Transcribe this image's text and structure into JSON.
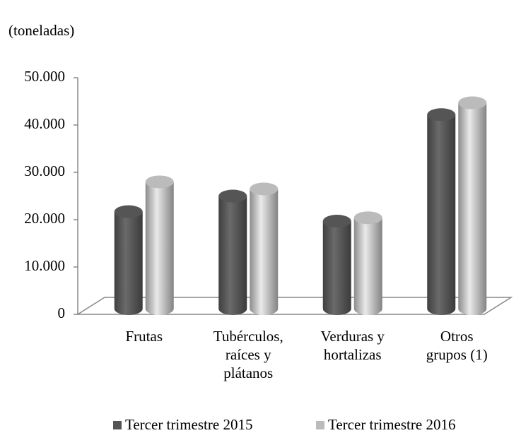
{
  "chart_data": {
    "type": "bar3d",
    "ylabel": "(toneladas)",
    "categories": [
      "Frutas",
      "Tubérculos,\nraíces y\nplátanos",
      "Verduras y\nhortalizas",
      "Otros\ngrupos (1)"
    ],
    "series": [
      {
        "name": "Tercer trimestre 2015",
        "color": "#555555",
        "values": [
          20500,
          23800,
          18500,
          41000
        ]
      },
      {
        "name": "Tercer trimestre 2016",
        "color": "#bbbbbb",
        "values": [
          26800,
          25300,
          19200,
          43500
        ]
      }
    ],
    "ylim": [
      0,
      50000
    ],
    "yticks": [
      0,
      {
        "value": 10000,
        "label": "10.000"
      },
      {
        "value": 20000,
        "label": "20.000"
      },
      {
        "value": 30000,
        "label": "30.000"
      },
      {
        "value": 40000,
        "label": "40.000"
      },
      {
        "value": 50000,
        "label": "50.000"
      }
    ],
    "legend": "bottom"
  }
}
